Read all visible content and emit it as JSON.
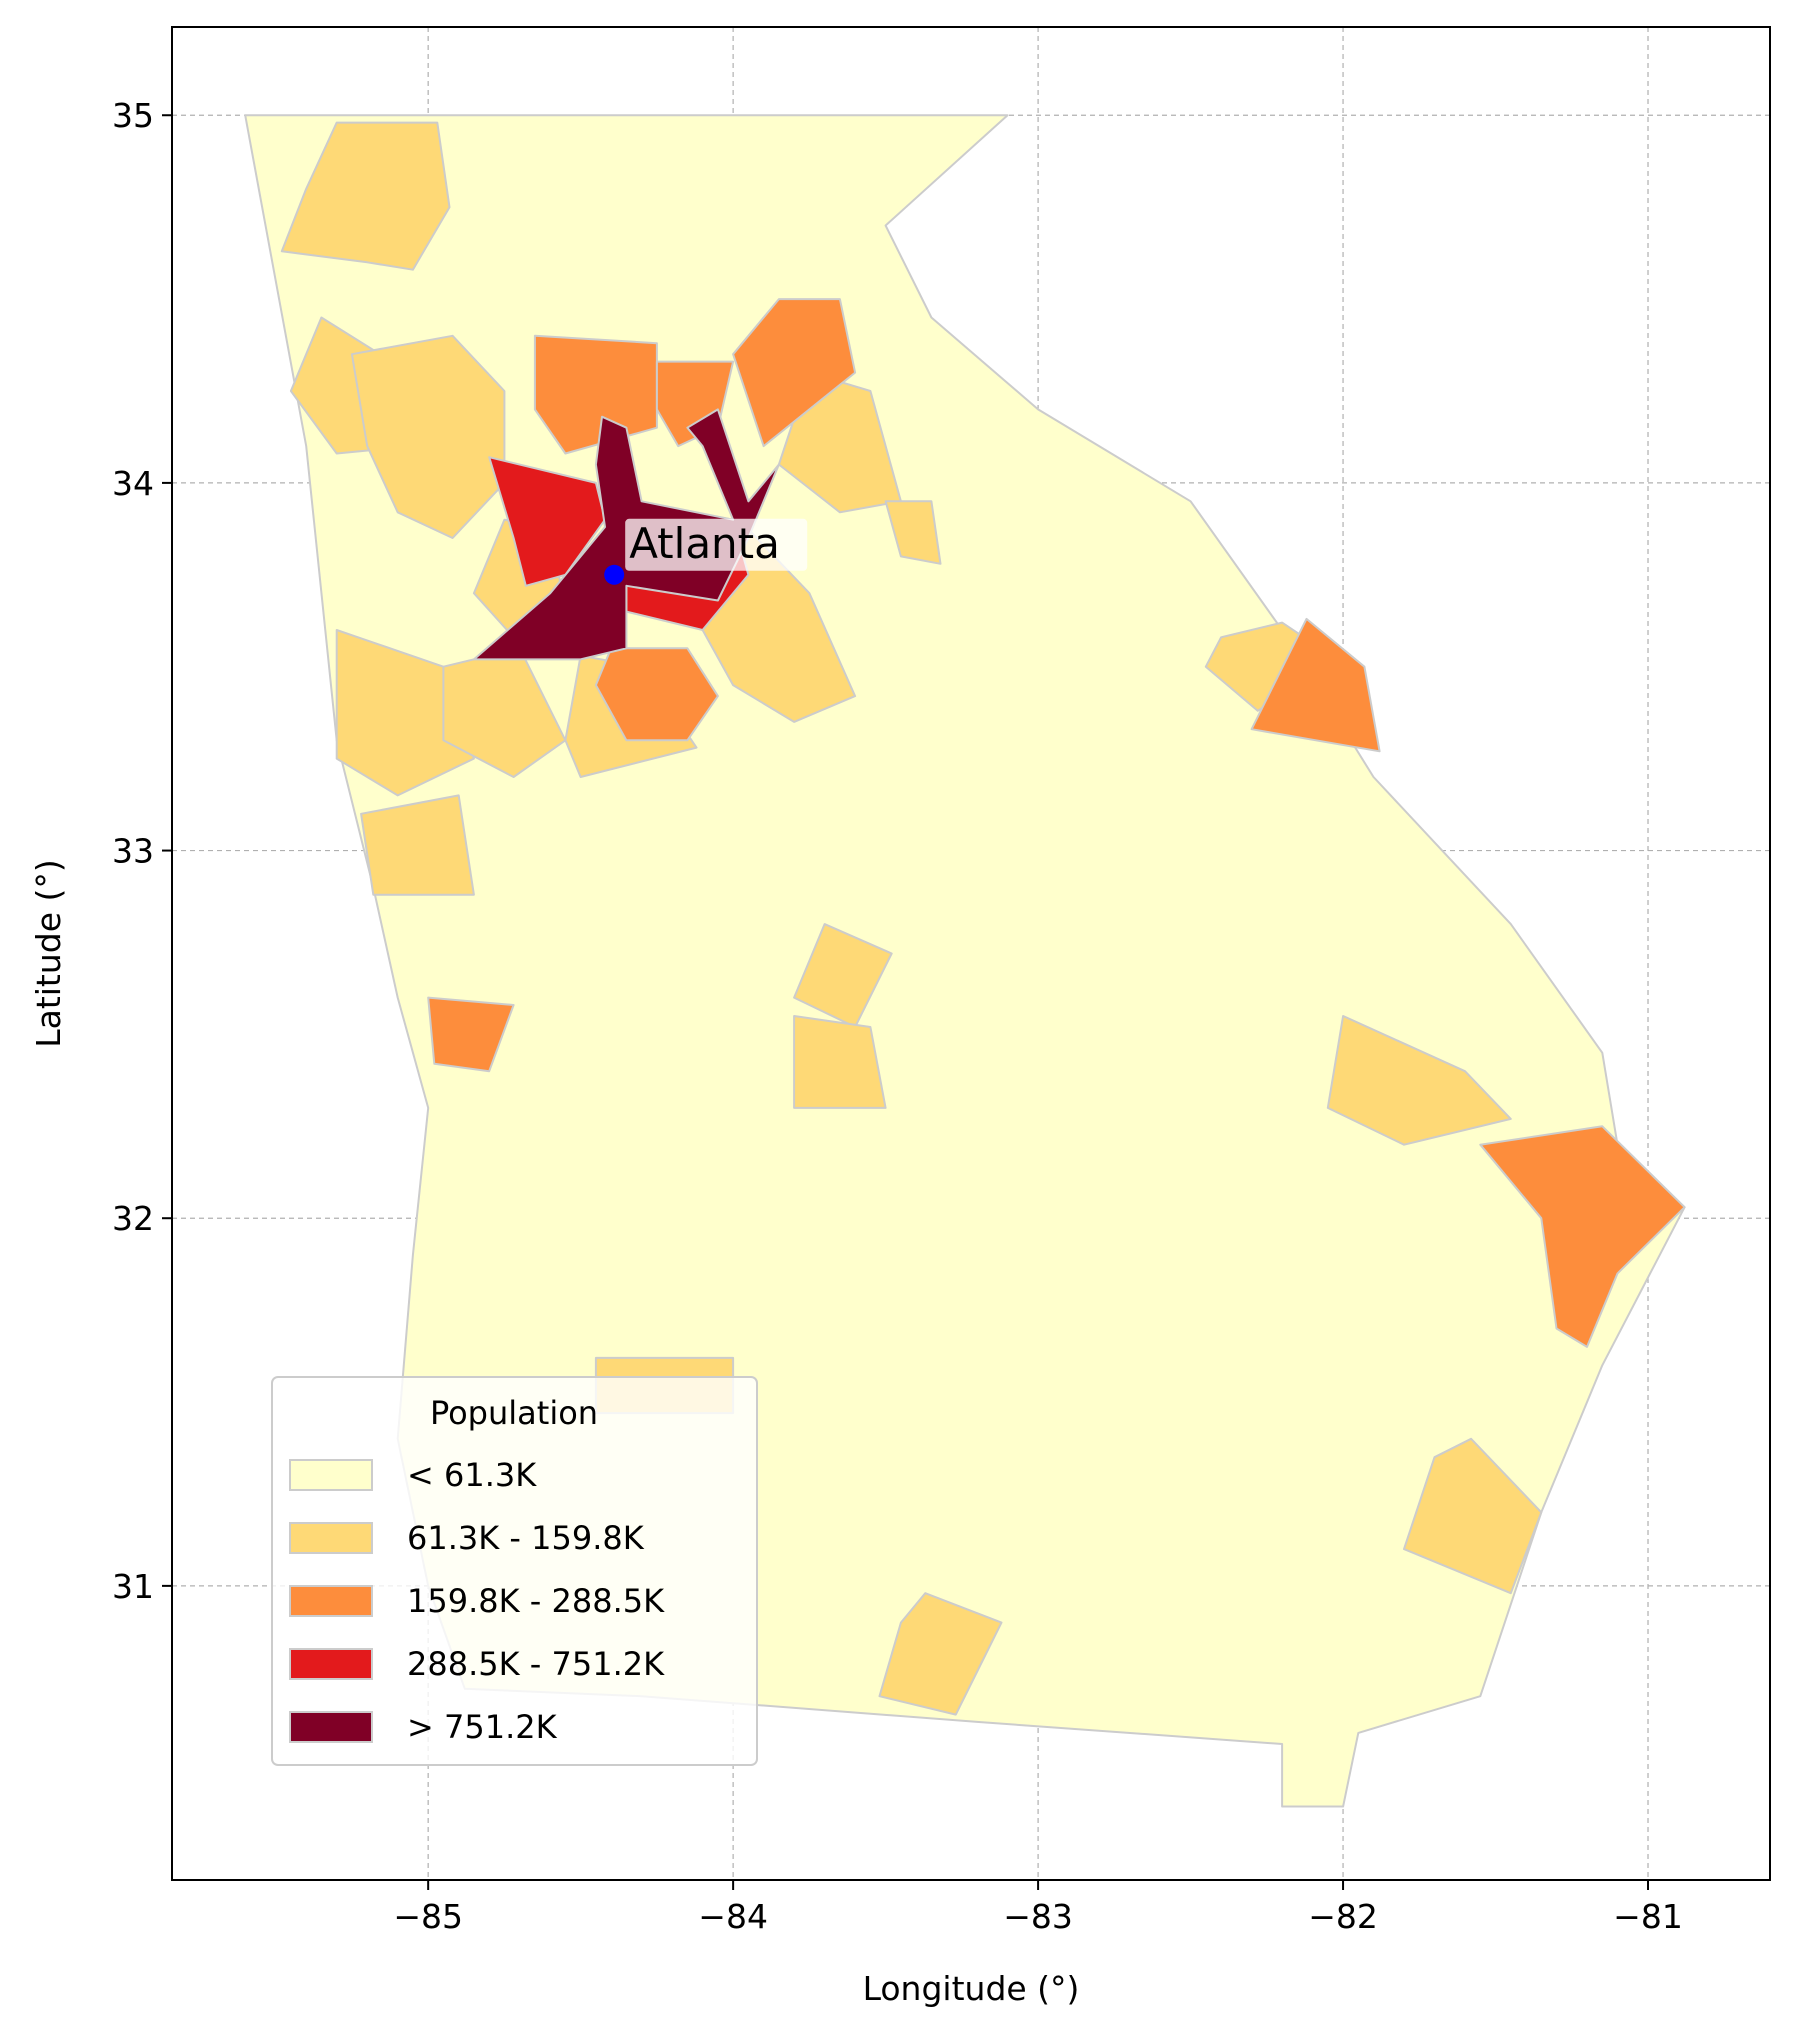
{
  "chart_data": {
    "type": "choropleth",
    "title": "",
    "xlabel": "Longitude (°)",
    "ylabel": "Latitude (°)",
    "xlim": [
      -85.84,
      -80.6
    ],
    "ylim": [
      30.2,
      35.24
    ],
    "x_ticks": [
      -85,
      -84,
      -83,
      -82,
      -81
    ],
    "x_tick_labels": [
      "−85",
      "−84",
      "−83",
      "−82",
      "−81"
    ],
    "y_ticks": [
      31,
      32,
      33,
      34,
      35
    ],
    "y_tick_labels": [
      "31",
      "32",
      "33",
      "34",
      "35"
    ],
    "grid": true,
    "legend": {
      "title": "Population",
      "placement": "lower-left",
      "entries": [
        {
          "label": "< 61.3K",
          "color": "#ffffcc"
        },
        {
          "label": "61.3K - 159.8K",
          "color": "#fed976"
        },
        {
          "label": "159.8K - 288.5K",
          "color": "#fd8d3c"
        },
        {
          "label": "288.5K - 751.2K",
          "color": "#e31a1c"
        },
        {
          "label": "> 751.2K",
          "color": "#800026"
        }
      ]
    },
    "annotation": {
      "label": "Atlanta",
      "lon": -84.39,
      "lat": 33.75,
      "marker_color": "#0000ff"
    },
    "regions": [
      {
        "cls": 0,
        "pts": [
          [
            -85.6,
            35.0
          ],
          [
            -84.3,
            35.0
          ],
          [
            -83.1,
            35.0
          ],
          [
            -83.5,
            34.7
          ],
          [
            -83.35,
            34.45
          ],
          [
            -83.0,
            34.2
          ],
          [
            -82.5,
            33.95
          ],
          [
            -82.2,
            33.6
          ],
          [
            -81.9,
            33.2
          ],
          [
            -81.45,
            32.8
          ],
          [
            -81.15,
            32.45
          ],
          [
            -81.1,
            32.2
          ],
          [
            -80.88,
            32.03
          ],
          [
            -81.15,
            31.6
          ],
          [
            -81.35,
            31.2
          ],
          [
            -81.45,
            30.95
          ],
          [
            -81.55,
            30.7
          ],
          [
            -81.95,
            30.6
          ],
          [
            -82.0,
            30.4
          ],
          [
            -82.2,
            30.4
          ],
          [
            -82.2,
            30.57
          ],
          [
            -83.2,
            30.63
          ],
          [
            -84.3,
            30.7
          ],
          [
            -84.88,
            30.72
          ],
          [
            -85.0,
            31.0
          ],
          [
            -85.1,
            31.4
          ],
          [
            -85.05,
            31.9
          ],
          [
            -85.0,
            32.3
          ],
          [
            -85.1,
            32.6
          ],
          [
            -85.18,
            32.9
          ],
          [
            -85.3,
            33.3
          ],
          [
            -85.4,
            34.1
          ],
          [
            -85.6,
            35.0
          ]
        ]
      },
      {
        "cls": 1,
        "pts": [
          [
            -85.48,
            34.63
          ],
          [
            -85.4,
            34.8
          ],
          [
            -85.3,
            34.98
          ],
          [
            -84.97,
            34.98
          ],
          [
            -84.93,
            34.75
          ],
          [
            -85.05,
            34.58
          ],
          [
            -85.2,
            34.6
          ],
          [
            -85.48,
            34.63
          ]
        ]
      },
      {
        "cls": 1,
        "pts": [
          [
            -85.35,
            34.45
          ],
          [
            -85.1,
            34.32
          ],
          [
            -85.05,
            34.1
          ],
          [
            -85.3,
            34.08
          ],
          [
            -85.45,
            34.25
          ],
          [
            -85.35,
            34.45
          ]
        ]
      },
      {
        "cls": 1,
        "pts": [
          [
            -85.25,
            34.35
          ],
          [
            -84.92,
            34.4
          ],
          [
            -84.75,
            34.25
          ],
          [
            -84.75,
            34.0
          ],
          [
            -84.92,
            33.85
          ],
          [
            -85.1,
            33.92
          ],
          [
            -85.2,
            34.1
          ],
          [
            -85.25,
            34.35
          ]
        ]
      },
      {
        "cls": 1,
        "pts": [
          [
            -85.3,
            33.6
          ],
          [
            -84.95,
            33.5
          ],
          [
            -84.85,
            33.25
          ],
          [
            -85.1,
            33.15
          ],
          [
            -85.3,
            33.25
          ],
          [
            -85.3,
            33.6
          ]
        ]
      },
      {
        "cls": 1,
        "pts": [
          [
            -85.22,
            33.1
          ],
          [
            -84.9,
            33.15
          ],
          [
            -84.85,
            32.88
          ],
          [
            -85.18,
            32.88
          ],
          [
            -85.22,
            33.1
          ]
        ]
      },
      {
        "cls": 1,
        "pts": [
          [
            -84.95,
            33.5
          ],
          [
            -84.7,
            33.55
          ],
          [
            -84.55,
            33.3
          ],
          [
            -84.72,
            33.2
          ],
          [
            -84.95,
            33.3
          ],
          [
            -84.95,
            33.5
          ]
        ]
      },
      {
        "cls": 1,
        "pts": [
          [
            -84.5,
            33.53
          ],
          [
            -84.3,
            33.5
          ],
          [
            -84.12,
            33.28
          ],
          [
            -84.5,
            33.2
          ],
          [
            -84.55,
            33.3
          ],
          [
            -84.5,
            33.53
          ]
        ]
      },
      {
        "cls": 1,
        "pts": [
          [
            -84.75,
            33.9
          ],
          [
            -84.6,
            33.88
          ],
          [
            -84.55,
            33.65
          ],
          [
            -84.72,
            33.58
          ],
          [
            -84.85,
            33.7
          ],
          [
            -84.75,
            33.9
          ]
        ]
      },
      {
        "cls": 1,
        "pts": [
          [
            -83.98,
            33.9
          ],
          [
            -83.75,
            33.7
          ],
          [
            -83.6,
            33.42
          ],
          [
            -83.8,
            33.35
          ],
          [
            -84.0,
            33.45
          ],
          [
            -84.1,
            33.6
          ],
          [
            -83.98,
            33.9
          ]
        ]
      },
      {
        "cls": 1,
        "pts": [
          [
            -83.75,
            34.3
          ],
          [
            -83.55,
            34.25
          ],
          [
            -83.45,
            33.95
          ],
          [
            -83.65,
            33.92
          ],
          [
            -83.85,
            34.05
          ],
          [
            -83.75,
            34.3
          ]
        ]
      },
      {
        "cls": 1,
        "pts": [
          [
            -83.5,
            33.95
          ],
          [
            -83.35,
            33.95
          ],
          [
            -83.32,
            33.78
          ],
          [
            -83.45,
            33.8
          ],
          [
            -83.5,
            33.95
          ]
        ]
      },
      {
        "cls": 1,
        "pts": [
          [
            -82.4,
            33.58
          ],
          [
            -82.2,
            33.62
          ],
          [
            -82.02,
            33.52
          ],
          [
            -82.28,
            33.38
          ],
          [
            -82.45,
            33.5
          ],
          [
            -82.4,
            33.58
          ]
        ]
      },
      {
        "cls": 1,
        "pts": [
          [
            -83.7,
            32.8
          ],
          [
            -83.48,
            32.72
          ],
          [
            -83.6,
            32.52
          ],
          [
            -83.8,
            32.6
          ],
          [
            -83.7,
            32.8
          ]
        ]
      },
      {
        "cls": 1,
        "pts": [
          [
            -83.8,
            32.55
          ],
          [
            -83.55,
            32.52
          ],
          [
            -83.5,
            32.3
          ],
          [
            -83.8,
            32.3
          ],
          [
            -83.8,
            32.55
          ]
        ]
      },
      {
        "cls": 1,
        "pts": [
          [
            -82.0,
            32.55
          ],
          [
            -81.6,
            32.4
          ],
          [
            -81.45,
            32.27
          ],
          [
            -81.8,
            32.2
          ],
          [
            -82.05,
            32.3
          ],
          [
            -82.0,
            32.55
          ]
        ]
      },
      {
        "cls": 1,
        "pts": [
          [
            -81.58,
            31.4
          ],
          [
            -81.35,
            31.2
          ],
          [
            -81.45,
            30.98
          ],
          [
            -81.8,
            31.1
          ],
          [
            -81.7,
            31.35
          ],
          [
            -81.58,
            31.4
          ]
        ]
      },
      {
        "cls": 1,
        "pts": [
          [
            -83.37,
            30.98
          ],
          [
            -83.12,
            30.9
          ],
          [
            -83.27,
            30.65
          ],
          [
            -83.52,
            30.7
          ],
          [
            -83.45,
            30.9
          ],
          [
            -83.37,
            30.98
          ]
        ]
      },
      {
        "cls": 1,
        "pts": [
          [
            -84.45,
            31.62
          ],
          [
            -84.0,
            31.62
          ],
          [
            -84.0,
            31.47
          ],
          [
            -84.45,
            31.47
          ],
          [
            -84.45,
            31.62
          ]
        ]
      },
      {
        "cls": 2,
        "pts": [
          [
            -84.65,
            34.4
          ],
          [
            -84.25,
            34.38
          ],
          [
            -84.25,
            34.15
          ],
          [
            -84.55,
            34.08
          ],
          [
            -84.65,
            34.2
          ],
          [
            -84.65,
            34.4
          ]
        ]
      },
      {
        "cls": 2,
        "pts": [
          [
            -84.25,
            34.33
          ],
          [
            -84.0,
            34.33
          ],
          [
            -84.05,
            34.15
          ],
          [
            -84.18,
            34.1
          ],
          [
            -84.25,
            34.2
          ],
          [
            -84.25,
            34.33
          ]
        ]
      },
      {
        "cls": 2,
        "pts": [
          [
            -84.0,
            34.35
          ],
          [
            -83.85,
            34.5
          ],
          [
            -83.65,
            34.5
          ],
          [
            -83.6,
            34.3
          ],
          [
            -83.9,
            34.1
          ],
          [
            -84.0,
            34.35
          ]
        ]
      },
      {
        "cls": 2,
        "pts": [
          [
            -84.4,
            33.55
          ],
          [
            -84.15,
            33.55
          ],
          [
            -84.05,
            33.42
          ],
          [
            -84.15,
            33.3
          ],
          [
            -84.35,
            33.3
          ],
          [
            -84.45,
            33.45
          ],
          [
            -84.4,
            33.55
          ]
        ]
      },
      {
        "cls": 2,
        "pts": [
          [
            -82.12,
            33.63
          ],
          [
            -81.93,
            33.5
          ],
          [
            -81.88,
            33.27
          ],
          [
            -82.3,
            33.33
          ],
          [
            -82.12,
            33.63
          ]
        ]
      },
      {
        "cls": 2,
        "pts": [
          [
            -85.0,
            32.6
          ],
          [
            -84.72,
            32.58
          ],
          [
            -84.8,
            32.4
          ],
          [
            -84.98,
            32.42
          ],
          [
            -85.0,
            32.6
          ]
        ]
      },
      {
        "cls": 2,
        "pts": [
          [
            -81.55,
            32.2
          ],
          [
            -81.15,
            32.25
          ],
          [
            -80.88,
            32.03
          ],
          [
            -81.1,
            31.85
          ],
          [
            -81.2,
            31.65
          ],
          [
            -81.3,
            31.7
          ],
          [
            -81.35,
            32.0
          ],
          [
            -81.55,
            32.2
          ]
        ]
      },
      {
        "cls": 3,
        "pts": [
          [
            -84.8,
            34.07
          ],
          [
            -84.45,
            34.0
          ],
          [
            -84.42,
            33.9
          ],
          [
            -84.55,
            33.75
          ],
          [
            -84.68,
            33.72
          ],
          [
            -84.72,
            33.85
          ],
          [
            -84.8,
            34.07
          ]
        ]
      },
      {
        "cls": 3,
        "pts": [
          [
            -84.33,
            33.95
          ],
          [
            -84.0,
            33.9
          ],
          [
            -83.95,
            33.75
          ],
          [
            -84.1,
            33.6
          ],
          [
            -84.35,
            33.65
          ],
          [
            -84.35,
            33.85
          ],
          [
            -84.33,
            33.95
          ]
        ]
      },
      {
        "cls": 4,
        "pts": [
          [
            -84.43,
            34.18
          ],
          [
            -84.35,
            34.15
          ],
          [
            -84.3,
            33.95
          ],
          [
            -84.0,
            33.9
          ],
          [
            -84.1,
            34.1
          ],
          [
            -84.15,
            34.15
          ],
          [
            -84.05,
            34.2
          ],
          [
            -83.95,
            33.95
          ],
          [
            -83.85,
            34.05
          ],
          [
            -83.95,
            33.85
          ],
          [
            -84.05,
            33.68
          ],
          [
            -84.35,
            33.72
          ],
          [
            -84.35,
            33.55
          ],
          [
            -84.5,
            33.52
          ],
          [
            -84.85,
            33.52
          ],
          [
            -84.6,
            33.7
          ],
          [
            -84.42,
            33.88
          ],
          [
            -84.45,
            34.05
          ],
          [
            -84.43,
            34.18
          ]
        ]
      }
    ]
  }
}
